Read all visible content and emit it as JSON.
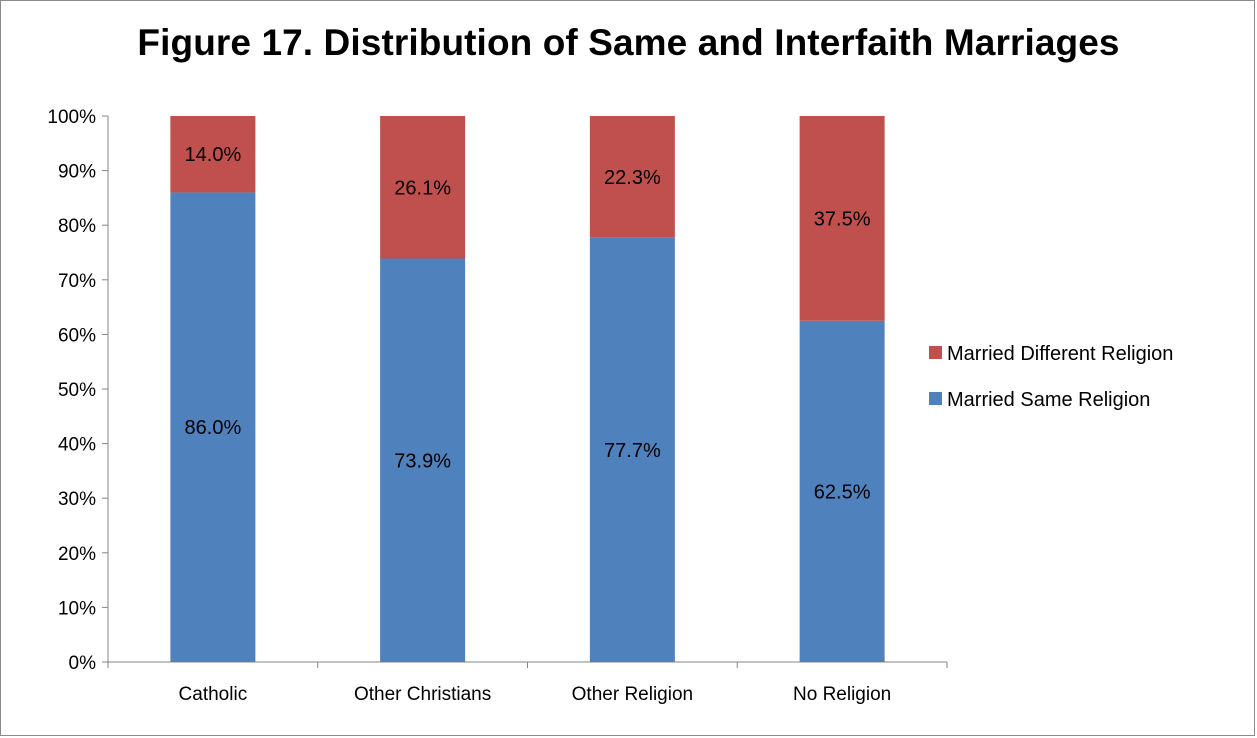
{
  "chart_data": {
    "type": "bar",
    "stacked": true,
    "title": "Figure 17. Distribution of Same and Interfaith Marriages",
    "xlabel": "",
    "ylabel": "",
    "categories": [
      "Catholic",
      "Other Christians",
      "Other Religion",
      "No Religion"
    ],
    "series": [
      {
        "name": "Married Same Religion",
        "values": [
          86.0,
          73.9,
          77.7,
          62.5
        ],
        "labels": [
          "86.0%",
          "73.9%",
          "77.7%",
          "62.5%"
        ],
        "color": "#4f81bd"
      },
      {
        "name": "Married Different Religion",
        "values": [
          14.0,
          26.1,
          22.3,
          37.5
        ],
        "labels": [
          "14.0%",
          "26.1%",
          "22.3%",
          "37.5%"
        ],
        "color": "#c0504d"
      }
    ],
    "ylim": [
      0,
      100
    ],
    "yticks": [
      "0%",
      "10%",
      "20%",
      "30%",
      "40%",
      "50%",
      "60%",
      "70%",
      "80%",
      "90%",
      "100%"
    ],
    "grid": false,
    "legend_position": "right",
    "legend_order": [
      "Married Different Religion",
      "Married Same Religion"
    ]
  }
}
